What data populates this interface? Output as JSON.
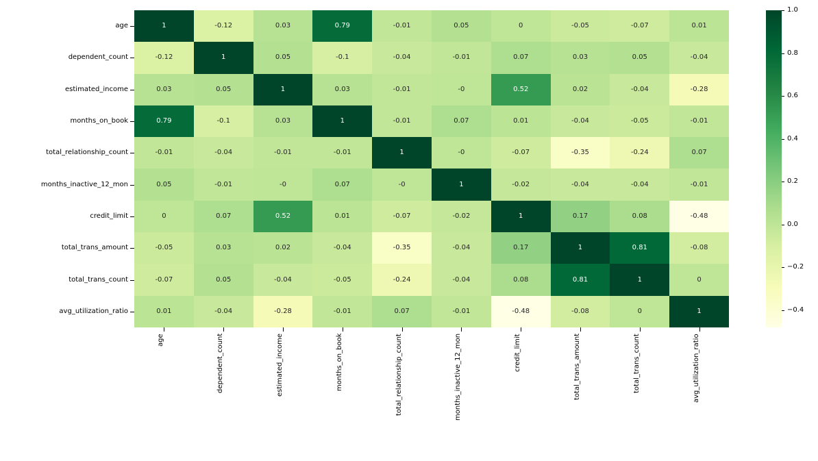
{
  "chart_data": {
    "type": "heatmap",
    "title": "",
    "xlabel": "",
    "ylabel": "",
    "variables": [
      "age",
      "dependent_count",
      "estimated_income",
      "months_on_book",
      "total_relationship_count",
      "months_inactive_12_mon",
      "credit_limit",
      "total_trans_amount",
      "total_trans_count",
      "avg_utilization_ratio"
    ],
    "cells": [
      [
        "1",
        "-0.12",
        "0.03",
        "0.79",
        "-0.01",
        "0.05",
        "0",
        "-0.05",
        "-0.07",
        "0.01"
      ],
      [
        "-0.12",
        "1",
        "0.05",
        "-0.1",
        "-0.04",
        "-0.01",
        "0.07",
        "0.03",
        "0.05",
        "-0.04"
      ],
      [
        "0.03",
        "0.05",
        "1",
        "0.03",
        "-0.01",
        "-0",
        "0.52",
        "0.02",
        "-0.04",
        "-0.28"
      ],
      [
        "0.79",
        "-0.1",
        "0.03",
        "1",
        "-0.01",
        "0.07",
        "0.01",
        "-0.04",
        "-0.05",
        "-0.01"
      ],
      [
        "-0.01",
        "-0.04",
        "-0.01",
        "-0.01",
        "1",
        "-0",
        "-0.07",
        "-0.35",
        "-0.24",
        "0.07"
      ],
      [
        "0.05",
        "-0.01",
        "-0",
        "0.07",
        "-0",
        "1",
        "-0.02",
        "-0.04",
        "-0.04",
        "-0.01"
      ],
      [
        "0",
        "0.07",
        "0.52",
        "0.01",
        "-0.07",
        "-0.02",
        "1",
        "0.17",
        "0.08",
        "-0.48"
      ],
      [
        "-0.05",
        "0.03",
        "0.02",
        "-0.04",
        "-0.35",
        "-0.04",
        "0.17",
        "1",
        "0.81",
        "-0.08"
      ],
      [
        "-0.07",
        "0.05",
        "-0.04",
        "-0.05",
        "-0.24",
        "-0.04",
        "0.08",
        "0.81",
        "1",
        "0"
      ],
      [
        "0.01",
        "-0.04",
        "-0.28",
        "-0.01",
        "0.07",
        "-0.01",
        "-0.48",
        "-0.08",
        "0",
        "1"
      ]
    ],
    "vmin": -0.48,
    "vmax": 1.0,
    "colormap_name": "YlGn",
    "colormap_anchors": [
      "#ffffe5",
      "#f7fcb9",
      "#d9f0a3",
      "#addd8e",
      "#78c679",
      "#41ab5d",
      "#238443",
      "#006837",
      "#004529"
    ],
    "annotation_dark_text_color": "#262626",
    "annotation_light_text_color": "#ffffff",
    "colorbar": {
      "position": "right",
      "tick_labels": [
        "1.0",
        "0.8",
        "0.6",
        "0.4",
        "0.2",
        "0.0",
        "−0.2",
        "−0.4"
      ],
      "tick_values": [
        1.0,
        0.8,
        0.6,
        0.4,
        0.2,
        0.0,
        -0.2,
        -0.4
      ]
    },
    "grid": false,
    "legend": false
  }
}
